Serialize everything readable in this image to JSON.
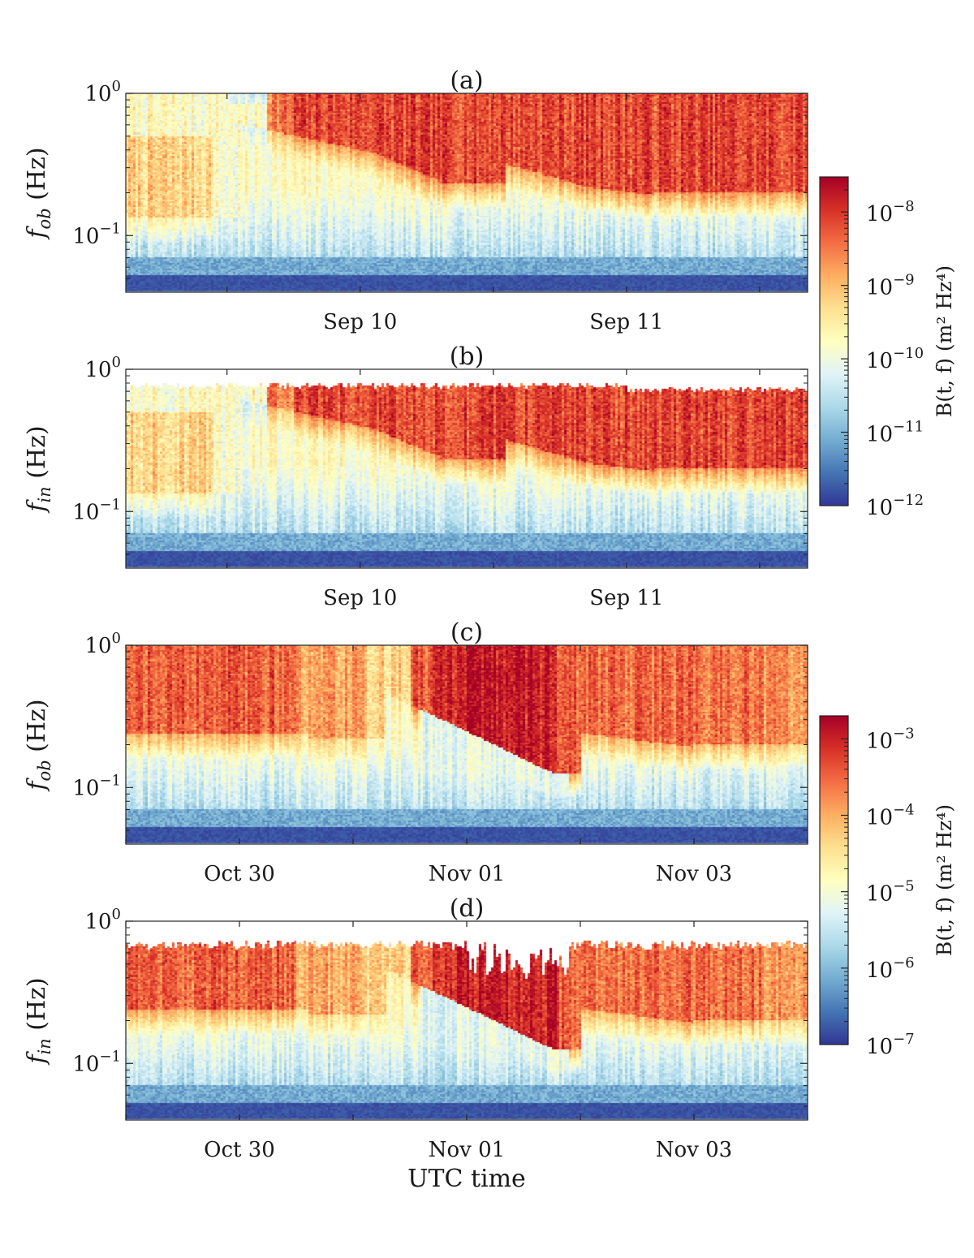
{
  "figure": {
    "xlabel": "UTC time"
  },
  "colormap": [
    "#313695",
    "#4575b4",
    "#74add1",
    "#abd9e9",
    "#e0f3f8",
    "#ffffbf",
    "#fee090",
    "#fdae61",
    "#f46d43",
    "#d73027",
    "#a50026"
  ],
  "colorbars": [
    {
      "label": "B(t, f) (m² Hz⁴)",
      "scale": "log",
      "range": [
        1e-12,
        3e-08
      ],
      "ticks": [
        {
          "value": 1e-08,
          "base": "10",
          "exp": "−8"
        },
        {
          "value": 1e-09,
          "base": "10",
          "exp": "−9"
        },
        {
          "value": 1e-10,
          "base": "10",
          "exp": "−10"
        },
        {
          "value": 1e-11,
          "base": "10",
          "exp": "−11"
        },
        {
          "value": 1e-12,
          "base": "10",
          "exp": "−12"
        }
      ]
    },
    {
      "label": "B(t, f) (m² Hz⁴)",
      "scale": "log",
      "range": [
        1e-07,
        0.002
      ],
      "ticks": [
        {
          "value": 0.001,
          "base": "10",
          "exp": "−3"
        },
        {
          "value": 0.0001,
          "base": "10",
          "exp": "−4"
        },
        {
          "value": 1e-05,
          "base": "10",
          "exp": "−5"
        },
        {
          "value": 1e-06,
          "base": "10",
          "exp": "−6"
        },
        {
          "value": 1e-07,
          "base": "10",
          "exp": "−7"
        }
      ]
    }
  ],
  "chart_data": [
    {
      "type": "heatmap",
      "title": "(a)",
      "ylabel": "f_ob (Hz)",
      "ylabel_main": "f",
      "ylabel_sub": "ob",
      "ylabel_unit": " (Hz)",
      "yscale": "log",
      "ylim": [
        0.04,
        1.0
      ],
      "yticks": [
        {
          "value": 1.0,
          "base": "10",
          "exp": "0"
        },
        {
          "value": 0.1,
          "base": "10",
          "exp": "−1"
        }
      ],
      "xlim_days": [
        -0.88,
        1.68
      ],
      "xtick_marks_days": [
        -0.5,
        0,
        0.5,
        1,
        1.5
      ],
      "xtick_labels": [
        {
          "day": 0,
          "label": "Sep 10"
        },
        {
          "day": 1,
          "label": "Sep 11"
        }
      ],
      "colorbar": 0,
      "mode": "sep",
      "clip_top": false
    },
    {
      "type": "heatmap",
      "title": "(b)",
      "ylabel": "f_in (Hz)",
      "ylabel_main": "f",
      "ylabel_sub": "in",
      "ylabel_unit": " (Hz)",
      "yscale": "log",
      "ylim": [
        0.04,
        1.0
      ],
      "yticks": [
        {
          "value": 1.0,
          "base": "10",
          "exp": "0"
        },
        {
          "value": 0.1,
          "base": "10",
          "exp": "−1"
        }
      ],
      "xlim_days": [
        -0.88,
        1.68
      ],
      "xtick_marks_days": [
        -0.5,
        0,
        0.5,
        1,
        1.5
      ],
      "xtick_labels": [
        {
          "day": 0,
          "label": "Sep 10"
        },
        {
          "day": 1,
          "label": "Sep 11"
        }
      ],
      "colorbar": 0,
      "mode": "sep",
      "clip_top": true
    },
    {
      "type": "heatmap",
      "title": "(c)",
      "ylabel": "f_ob (Hz)",
      "ylabel_main": "f",
      "ylabel_sub": "ob",
      "ylabel_unit": " (Hz)",
      "yscale": "log",
      "ylim": [
        0.04,
        1.0
      ],
      "yticks": [
        {
          "value": 1.0,
          "base": "10",
          "exp": "0"
        },
        {
          "value": 0.1,
          "base": "10",
          "exp": "−1"
        }
      ],
      "xlim_days": [
        -1.0,
        5.0
      ],
      "xtick_marks_days": [
        -1,
        0,
        1,
        2,
        3,
        4,
        5
      ],
      "xtick_labels": [
        {
          "day": 0,
          "label": "Oct 30"
        },
        {
          "day": 2,
          "label": "Nov 01"
        },
        {
          "day": 4,
          "label": "Nov 03"
        }
      ],
      "colorbar": 1,
      "mode": "oct",
      "clip_top": false
    },
    {
      "type": "heatmap",
      "title": "(d)",
      "ylabel": "f_in (Hz)",
      "ylabel_main": "f",
      "ylabel_sub": "in",
      "ylabel_unit": " (Hz)",
      "yscale": "log",
      "ylim": [
        0.04,
        1.0
      ],
      "yticks": [
        {
          "value": 1.0,
          "base": "10",
          "exp": "0"
        },
        {
          "value": 0.1,
          "base": "10",
          "exp": "−1"
        }
      ],
      "xlim_days": [
        -1.0,
        5.0
      ],
      "xtick_marks_days": [
        -1,
        0,
        1,
        2,
        3,
        4,
        5
      ],
      "xtick_labels": [
        {
          "day": 0,
          "label": "Oct 30"
        },
        {
          "day": 2,
          "label": "Nov 01"
        },
        {
          "day": 4,
          "label": "Nov 03"
        }
      ],
      "colorbar": 1,
      "mode": "oct",
      "clip_top": true
    }
  ]
}
